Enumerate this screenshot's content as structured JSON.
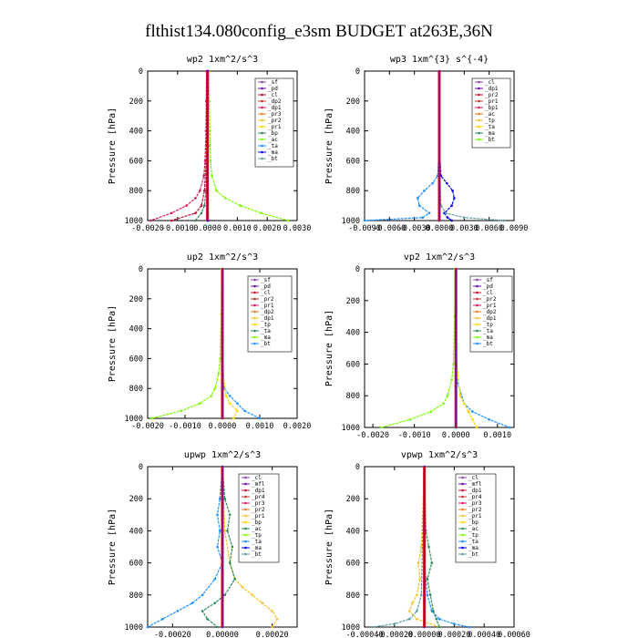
{
  "figure_title": "flthist134.080config_e3sm  BUDGET at263E,36N",
  "colors": {
    "sf": "#8e44ad",
    "pd": "#6a0dad",
    "cl": "#c8102e",
    "dp2": "#c0392b",
    "dp1": "#d81b60",
    "pr3": "#e67e22",
    "pr2": "#f4c430",
    "pr1": "#ffd700",
    "bp": "#2e8b57",
    "ac": "#7cfc00",
    "tp": "#1e90ff",
    "ta": "#0000ff",
    "ma": "#5f9ea0",
    "bt": "#00ced1",
    "mfl": "#800000",
    "pr4": "#b22222",
    "ldp1": "#ff69b4"
  },
  "chart_data": [
    {
      "type": "line",
      "title": "wp2   1xm^2/s^3",
      "ylabel": "Pressure [hPa]",
      "xlim": [
        -0.002,
        0.003
      ],
      "ylim": [
        1000,
        0
      ],
      "xticks": [
        -0.002,
        -0.001,
        0.0,
        0.001,
        0.002,
        0.003
      ],
      "xtick_labels": [
        "-0.0020",
        "-0.0010",
        "0.0000",
        "0.0010",
        "0.0020",
        "0.0030"
      ],
      "yticks": [
        0,
        200,
        400,
        600,
        800,
        1000
      ],
      "legend": [
        "_sf",
        "_pd",
        "_cl",
        "_dp2",
        "_dp1",
        "_pr3",
        "_pr2",
        "_pr1",
        "_bp",
        "_ac",
        "_ta",
        "_ma",
        "_bt"
      ],
      "series": [
        {
          "key": "ac",
          "color": "#7cfc00",
          "y": [
            0,
            200,
            400,
            600,
            700,
            800,
            850,
            900,
            950,
            1000
          ],
          "x": [
            5e-05,
            6e-05,
            8e-05,
            0.0001,
            0.00015,
            0.0003,
            0.0006,
            0.0011,
            0.0018,
            0.0027
          ]
        },
        {
          "key": "dp1",
          "color": "#d81b60",
          "y": [
            0,
            200,
            400,
            600,
            700,
            800,
            850,
            900,
            950,
            1000
          ],
          "x": [
            -3e-05,
            -4e-05,
            -5e-05,
            -8e-05,
            -0.00012,
            -0.00025,
            -0.0004,
            -0.0007,
            -0.0012,
            -0.0019
          ]
        },
        {
          "key": "cl",
          "color": "#c8102e",
          "y": [
            0,
            300,
            600,
            800,
            900,
            950,
            1000
          ],
          "x": [
            -1e-05,
            -2e-05,
            -4e-05,
            -0.0001,
            -0.0002,
            -0.0004,
            -0.0012
          ]
        },
        {
          "key": "bp",
          "color": "#2e8b57",
          "y": [
            0,
            400,
            800,
            900,
            950,
            1000
          ],
          "x": [
            0.0,
            0.0,
            -5e-05,
            -0.0001,
            -0.0002,
            -0.0004
          ]
        },
        {
          "key": "pd",
          "color": "#6a0dad",
          "y": [
            0,
            500,
            1000
          ],
          "x": [
            0.0,
            0.0,
            0.0
          ]
        },
        {
          "key": "ta",
          "color": "#0000ff",
          "y": [
            0,
            500,
            1000
          ],
          "x": [
            2e-05,
            2e-05,
            2e-05
          ]
        }
      ]
    },
    {
      "type": "line",
      "title": "wp3   1xm^{3} s^{-4}",
      "ylabel": "Pressure [hPa]",
      "xlim": [
        -0.009,
        0.009
      ],
      "ylim": [
        1000,
        0
      ],
      "xticks": [
        -0.009,
        -0.006,
        -0.003,
        0.0,
        0.003,
        0.006,
        0.009
      ],
      "xtick_labels": [
        "-0.0090",
        "-0.0060",
        "-0.0030",
        "0.0000",
        "0.0030",
        "0.0060",
        "0.0090"
      ],
      "yticks": [
        0,
        200,
        400,
        600,
        800,
        1000
      ],
      "legend": [
        "_cl",
        "_dp1",
        "_pr2",
        "_pr1",
        "_bp1",
        "_ac",
        "_tp",
        "_ta",
        "_ma",
        "_bt"
      ],
      "series": [
        {
          "key": "tp",
          "color": "#1e90ff",
          "y": [
            0,
            500,
            700,
            750,
            800,
            850,
            900,
            950,
            980,
            1000
          ],
          "x": [
            0.0,
            0.0,
            -0.0002,
            -0.0008,
            -0.0018,
            -0.0026,
            -0.0024,
            -0.0012,
            -0.002,
            -0.009
          ]
        },
        {
          "key": "ta",
          "color": "#0000ff",
          "y": [
            0,
            500,
            700,
            750,
            800,
            850,
            900,
            950,
            980,
            1000
          ],
          "x": [
            0.0,
            0.0,
            0.0002,
            0.0009,
            0.0016,
            0.0018,
            0.0015,
            0.0006,
            0.001,
            0.0015
          ]
        },
        {
          "key": "ma",
          "color": "#5f9ea0",
          "y": [
            0,
            600,
            900,
            950,
            980,
            1000
          ],
          "x": [
            0.0,
            0.0,
            0.0002,
            0.0008,
            0.003,
            0.0078
          ]
        },
        {
          "key": "cl",
          "color": "#c8102e",
          "y": [
            0,
            500,
            1000
          ],
          "x": [
            0.0,
            0.0,
            0.0
          ]
        }
      ]
    },
    {
      "type": "line",
      "title": "up2   1xm^2/s^3",
      "ylabel": "Pressure [hPa]",
      "xlim": [
        -0.002,
        0.002
      ],
      "ylim": [
        1000,
        0
      ],
      "xticks": [
        -0.002,
        -0.001,
        0.0,
        0.001,
        0.002
      ],
      "xtick_labels": [
        "-0.0020",
        "-0.0010",
        "0.0000",
        "0.0010",
        "0.0020"
      ],
      "yticks": [
        0,
        200,
        400,
        600,
        800,
        1000
      ],
      "legend": [
        "_sf",
        "_pd",
        "_cl",
        "_pr2",
        "_pr1",
        "_dp2",
        "_dp1",
        "_tp",
        "_ta",
        "_ma",
        "_bt"
      ],
      "series": [
        {
          "key": "dp1",
          "color": "#7cfc00",
          "y": [
            0,
            300,
            600,
            700,
            800,
            850,
            900,
            950,
            1000
          ],
          "x": [
            -2e-05,
            -3e-05,
            -6e-05,
            -0.0001,
            -0.0002,
            -0.0003,
            -0.0006,
            -0.0011,
            -0.0019
          ]
        },
        {
          "key": "ta",
          "color": "#1e90ff",
          "y": [
            0,
            600,
            800,
            850,
            900,
            950,
            1000
          ],
          "x": [
            0.0,
            0.0,
            5e-05,
            0.0002,
            0.0004,
            0.0006,
            0.001
          ]
        },
        {
          "key": "pr1",
          "color": "#ffd700",
          "y": [
            0,
            700,
            850,
            900,
            950,
            1000
          ],
          "x": [
            0.0,
            2e-05,
            0.0001,
            0.0002,
            0.0004,
            0.0003
          ]
        },
        {
          "key": "cl",
          "color": "#c8102e",
          "y": [
            0,
            500,
            1000
          ],
          "x": [
            0.0,
            0.0,
            0.0
          ]
        }
      ]
    },
    {
      "type": "line",
      "title": "vp2   1xm^2/s^3",
      "ylabel": "Pressure [hPa]",
      "xlim": [
        -0.0022,
        0.0014
      ],
      "ylim": [
        1000,
        0
      ],
      "xticks": [
        -0.002,
        -0.001,
        0.0,
        0.001
      ],
      "xtick_labels": [
        "-0.0020",
        "-0.0010",
        "0.0000",
        "0.0010"
      ],
      "yticks": [
        0,
        200,
        400,
        600,
        800,
        1000
      ],
      "legend": [
        "_sf",
        "_pd",
        "_cl",
        "_pr2",
        "_pr1",
        "_dp2",
        "_dp1",
        "_tp",
        "_ta",
        "_ma",
        "_bt"
      ],
      "series": [
        {
          "key": "dp1",
          "color": "#7cfc00",
          "y": [
            0,
            300,
            600,
            700,
            800,
            850,
            900,
            950,
            1000
          ],
          "x": [
            -2e-05,
            -3e-05,
            -6e-05,
            -0.0001,
            -0.0002,
            -0.0003,
            -0.0006,
            -0.0011,
            -0.0018
          ]
        },
        {
          "key": "ta",
          "color": "#1e90ff",
          "y": [
            0,
            700,
            850,
            900,
            950,
            1000
          ],
          "x": [
            0.0,
            2e-05,
            0.0002,
            0.0004,
            0.0008,
            0.0013
          ]
        },
        {
          "key": "pr1",
          "color": "#ffd700",
          "y": [
            0,
            600,
            800,
            850,
            900,
            950,
            1000
          ],
          "x": [
            0.0,
            2e-05,
            0.0001,
            0.0002,
            0.0003,
            0.0004,
            0.0005
          ]
        },
        {
          "key": "cl",
          "color": "#c8102e",
          "y": [
            0,
            500,
            1000
          ],
          "x": [
            0.0,
            0.0,
            0.0
          ]
        }
      ]
    },
    {
      "type": "line",
      "title": "upwp   1xm^2/s^3",
      "ylabel": "Pressure [hPa]",
      "xlim": [
        -0.0003,
        0.0003
      ],
      "ylim": [
        1000,
        0
      ],
      "xticks": [
        -0.0002,
        0.0,
        0.0002
      ],
      "xtick_labels": [
        "-0.00020",
        "0.00000",
        "0.00020"
      ],
      "yticks": [
        0,
        200,
        400,
        600,
        800,
        1000
      ],
      "legend": [
        "_cl",
        "_mfl",
        "_dp1",
        "_pr4",
        "_pr3",
        "_pr2",
        "_pr1",
        "_bp",
        "_ac",
        "_tp",
        "_ta",
        "_ma",
        "_bt"
      ],
      "series": [
        {
          "key": "tp",
          "color": "#1e90ff",
          "y": [
            0,
            200,
            300,
            400,
            500,
            600,
            700,
            800,
            850,
            900,
            950,
            1000
          ],
          "x": [
            0.0,
            -1e-05,
            -2e-05,
            -1e-05,
            -2e-05,
            0.0,
            -3e-05,
            -8e-05,
            -0.00012,
            -0.00018,
            -0.00024,
            -0.0003
          ]
        },
        {
          "key": "pr2",
          "color": "#f4c430",
          "y": [
            0,
            400,
            600,
            700,
            750,
            800,
            850,
            900,
            950,
            1000
          ],
          "x": [
            0.0,
            1e-05,
            3e-05,
            5e-05,
            8e-05,
            0.00012,
            0.00016,
            0.0002,
            0.00022,
            0.0002
          ]
        },
        {
          "key": "ac",
          "color": "#2e8b57",
          "y": [
            0,
            200,
            300,
            400,
            500,
            600,
            700,
            800,
            850,
            900,
            950,
            1000
          ],
          "x": [
            0.0,
            1e-05,
            3e-05,
            2e-05,
            4e-05,
            3e-05,
            5e-05,
            1e-05,
            -3e-05,
            -8e-05,
            -6e-05,
            -2e-05
          ]
        },
        {
          "key": "cl",
          "color": "#6a0dad",
          "y": [
            0,
            500,
            1000
          ],
          "x": [
            0.0,
            0.0,
            0.0
          ]
        }
      ]
    },
    {
      "type": "line",
      "title": "vpwp   1xm^2/s^3",
      "ylabel": "Pressure [hPa]",
      "xlim": [
        -0.0004,
        0.0006
      ],
      "ylim": [
        1000,
        0
      ],
      "xticks": [
        -0.0004,
        -0.0002,
        0.0,
        0.0002,
        0.0004,
        0.0006
      ],
      "xtick_labels": [
        "-0.00040",
        "-0.00020",
        "0.00000",
        "0.00020",
        "0.00040",
        "0.00060"
      ],
      "yticks": [
        0,
        200,
        400,
        600,
        800,
        1000
      ],
      "legend": [
        "_cl",
        "_mfl",
        "_dp1",
        "_pr4",
        "_pr3",
        "_pr2",
        "_pr1",
        "_bp",
        "_ac",
        "_tp",
        "_ta",
        "_ma",
        "_bt"
      ],
      "series": [
        {
          "key": "tp",
          "color": "#1e90ff",
          "y": [
            0,
            600,
            800,
            900,
            950,
            980,
            1000
          ],
          "x": [
            0.0,
            0.0,
            2e-05,
            5e-05,
            0.0001,
            0.0002,
            0.0003
          ]
        },
        {
          "key": "pr2",
          "color": "#f4c430",
          "y": [
            0,
            500,
            600,
            700,
            800,
            850,
            900,
            950,
            1000
          ],
          "x": [
            0.0,
            -2e-05,
            -4e-05,
            -3e-05,
            -5e-05,
            -8e-05,
            -0.0001,
            -5e-05,
            0.0001
          ]
        },
        {
          "key": "ac",
          "color": "#2e8b57",
          "y": [
            0,
            400,
            500,
            600,
            700,
            800,
            900,
            950,
            1000
          ],
          "x": [
            0.0,
            1e-05,
            3e-05,
            5e-05,
            2e-05,
            4e-05,
            6e-05,
            8e-05,
            0.0001
          ]
        },
        {
          "key": "ma",
          "color": "#5f9ea0",
          "y": [
            0,
            800,
            900,
            950,
            980,
            1000
          ],
          "x": [
            0.0,
            -2e-05,
            -5e-05,
            -0.0001,
            -0.0002,
            -0.00035
          ]
        },
        {
          "key": "cl",
          "color": "#6a0dad",
          "y": [
            0,
            500,
            1000
          ],
          "x": [
            0.0,
            0.0,
            0.0
          ]
        }
      ]
    }
  ]
}
